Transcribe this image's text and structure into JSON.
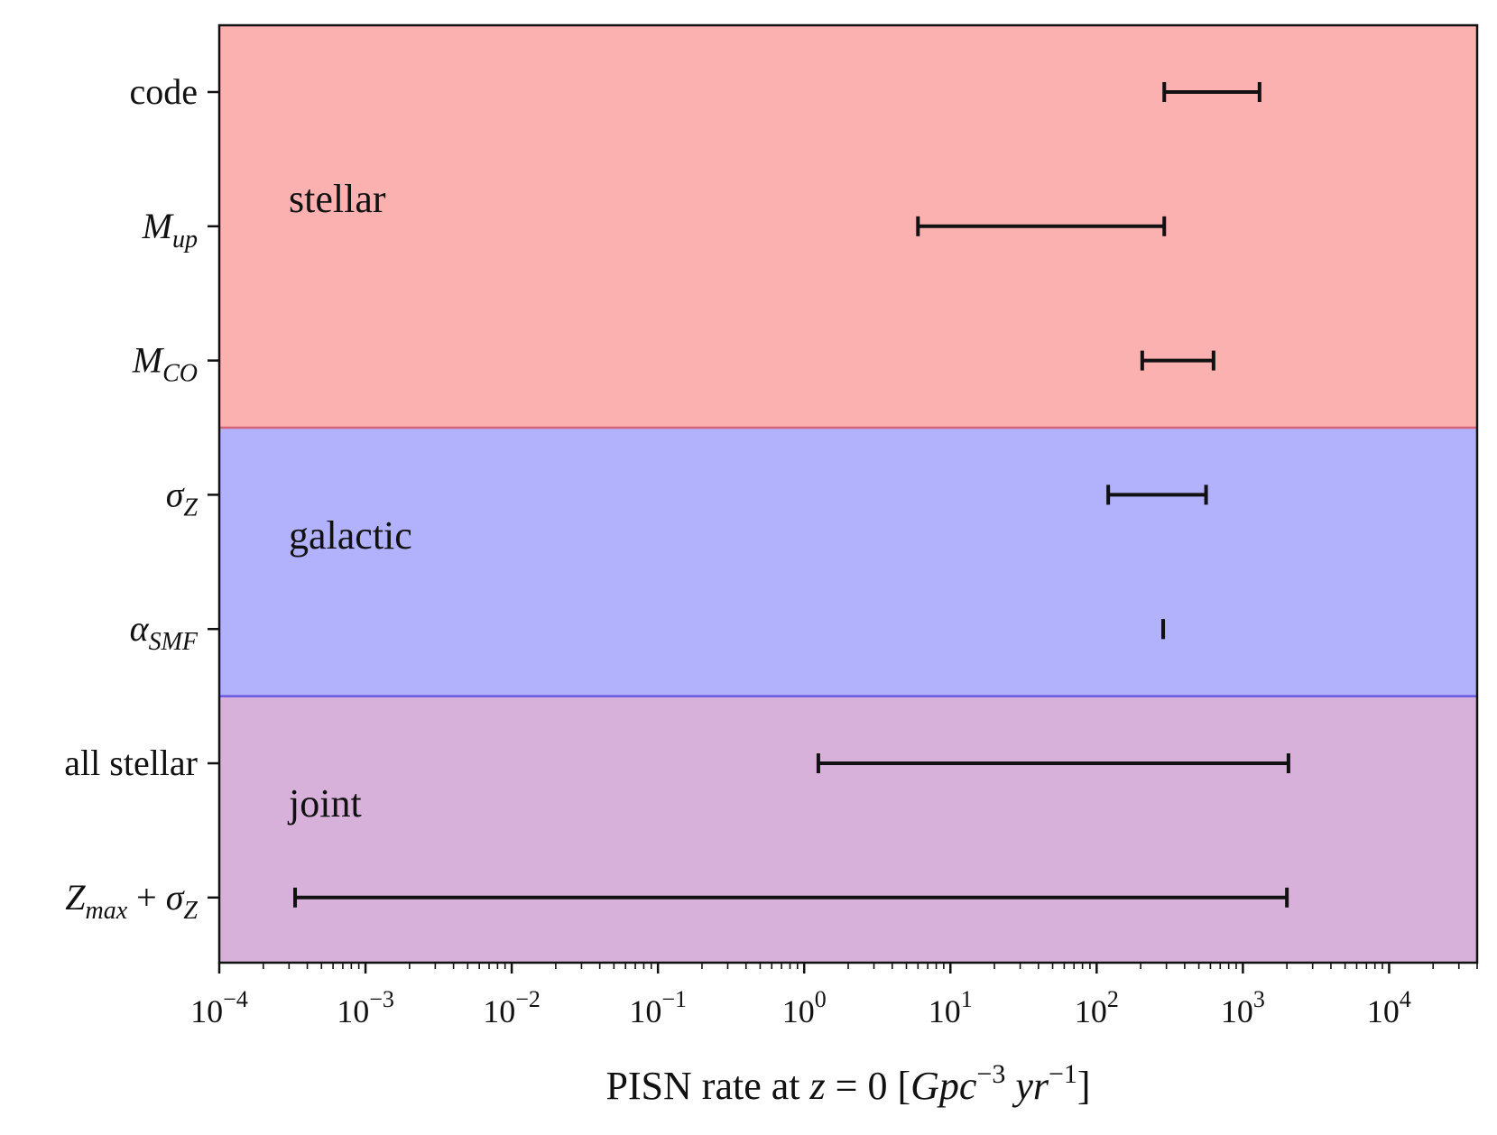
{
  "chart_data": {
    "type": "errorbar",
    "xscale": "log",
    "xlim": [
      0.0001,
      40000
    ],
    "xlabel": "PISN rate at z = 0 [Gpc⁻³ yr⁻¹]",
    "xlabel_parts": {
      "prefix": "PISN rate at ",
      "var": "z",
      "eq": " = 0 [",
      "unit1": "Gpc",
      "exp1": "−3",
      "unit2": "yr",
      "exp2": "−1",
      "suffix": "]"
    },
    "xticks": [
      {
        "base": "10",
        "exp": "−4",
        "value": 0.0001
      },
      {
        "base": "10",
        "exp": "−3",
        "value": 0.001
      },
      {
        "base": "10",
        "exp": "−2",
        "value": 0.01
      },
      {
        "base": "10",
        "exp": "−1",
        "value": 0.1
      },
      {
        "base": "10",
        "exp": "0",
        "value": 1
      },
      {
        "base": "10",
        "exp": "1",
        "value": 10
      },
      {
        "base": "10",
        "exp": "2",
        "value": 100
      },
      {
        "base": "10",
        "exp": "3",
        "value": 1000
      },
      {
        "base": "10",
        "exp": "4",
        "value": 10000
      }
    ],
    "rows": [
      {
        "label": "code",
        "main": "code",
        "sub": "",
        "low": 290,
        "high": 1300,
        "group": "stellar"
      },
      {
        "label": "M_up",
        "main": "M",
        "sub": "up",
        "low": 6,
        "high": 290,
        "group": "stellar"
      },
      {
        "label": "M_CO",
        "main": "M",
        "sub": "CO",
        "low": 205,
        "high": 630,
        "group": "stellar"
      },
      {
        "label": "σ_Z",
        "main": "σ",
        "sub": "Z",
        "low": 120,
        "high": 560,
        "group": "galactic"
      },
      {
        "label": "α_SMF",
        "main": "α",
        "sub": "SMF",
        "low": 285,
        "high": 285,
        "group": "galactic"
      },
      {
        "label": "all stellar",
        "main": "all stellar",
        "sub": "",
        "low": 1.25,
        "high": 2050,
        "group": "joint"
      },
      {
        "label": "Z_max + σ_Z",
        "main": "Z",
        "sub": "max",
        "tail": "+",
        "tail_main": "σ",
        "tail_sub": "Z",
        "low": 0.00033,
        "high": 2000,
        "group": "joint"
      }
    ],
    "groups": [
      {
        "name": "stellar",
        "label": "stellar",
        "rows": [
          0,
          2
        ],
        "color": "#fcb1b1",
        "edge": "#d4667a"
      },
      {
        "name": "galactic",
        "label": "galactic",
        "rows": [
          3,
          4
        ],
        "color": "#b1b1fc",
        "edge": "#6a5ae6"
      },
      {
        "name": "joint",
        "label": "joint",
        "rows": [
          5,
          6
        ],
        "color": "#d8b1da",
        "edge": "#6a5ae6"
      }
    ],
    "grid": false
  }
}
